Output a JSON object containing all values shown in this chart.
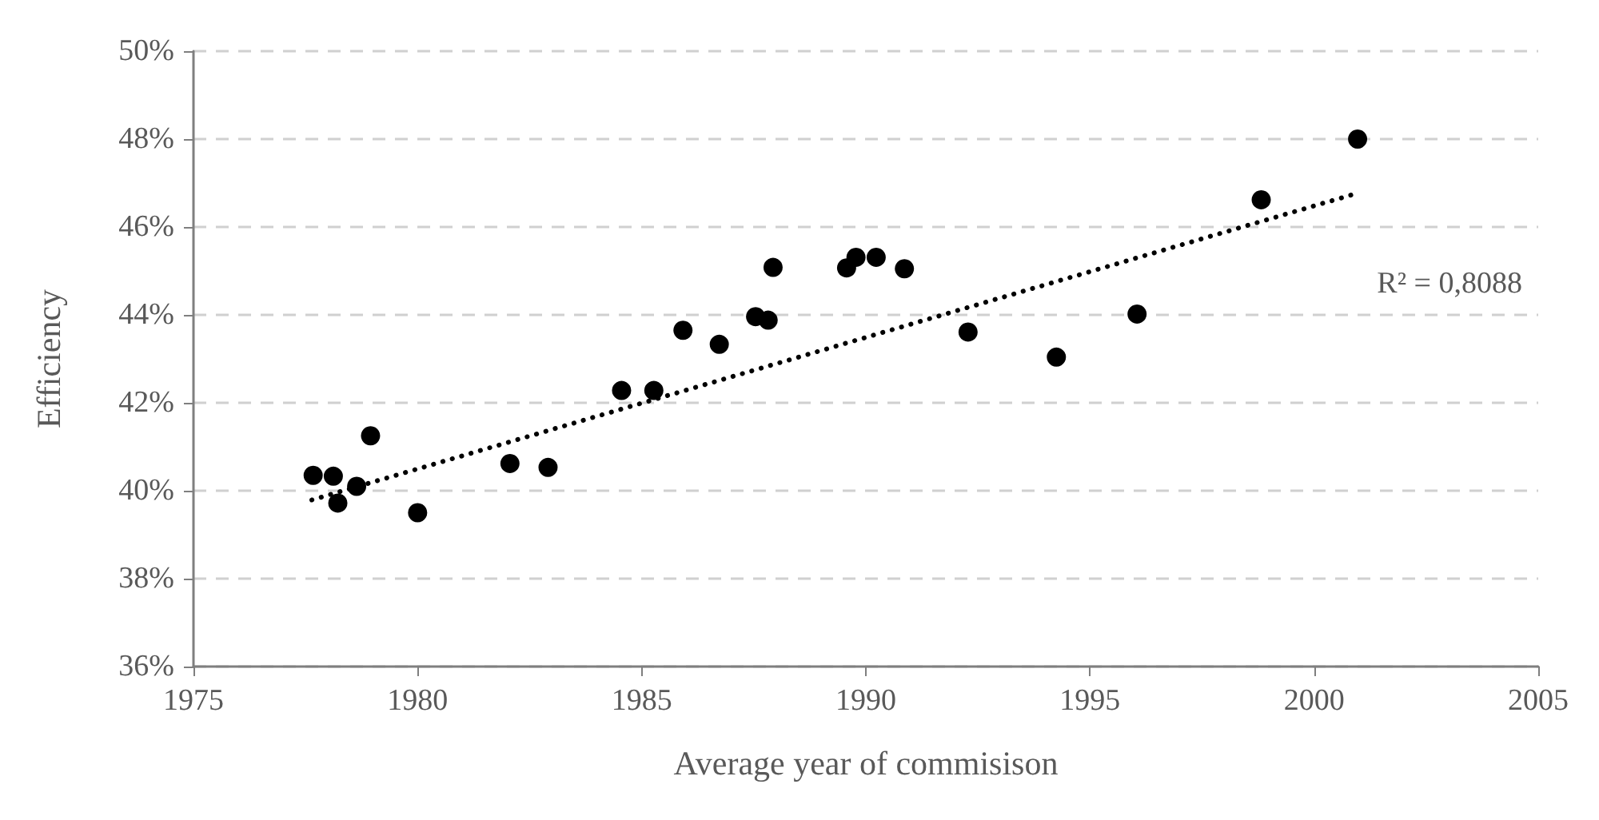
{
  "chart_data": {
    "type": "scatter",
    "xlabel": "Average year of commisison",
    "ylabel": "Efficiency",
    "xlim": [
      1975,
      2005
    ],
    "xticks": [
      1975,
      1980,
      1985,
      1990,
      1995,
      2000,
      2005
    ],
    "ylim": [
      36,
      50
    ],
    "yticks": [
      {
        "value": 36,
        "label": "36%"
      },
      {
        "value": 38,
        "label": "38%"
      },
      {
        "value": 40,
        "label": "40%"
      },
      {
        "value": 42,
        "label": "42%"
      },
      {
        "value": 44,
        "label": "44%"
      },
      {
        "value": 46,
        "label": "46%"
      },
      {
        "value": 48,
        "label": "48%"
      },
      {
        "value": 50,
        "label": "50%"
      }
    ],
    "grid": "y",
    "marker": "circle",
    "annotations": [
      "R² = 0,8088"
    ],
    "series": [
      {
        "color": "#000000",
        "x": [
          1977.67,
          1978.12,
          1978.22,
          1978.64,
          1978.95,
          1980.0,
          1982.06,
          1982.91,
          1984.55,
          1985.27,
          1985.92,
          1986.73,
          1987.54,
          1987.82,
          1987.93,
          1989.57,
          1989.78,
          1990.23,
          1990.86,
          1992.28,
          1994.25,
          1996.05,
          1998.82,
          2000.97
        ],
        "values": [
          40.35,
          40.33,
          39.72,
          40.1,
          41.25,
          39.5,
          40.62,
          40.53,
          42.28,
          42.28,
          43.65,
          43.33,
          43.96,
          43.88,
          45.08,
          45.07,
          45.31,
          45.31,
          45.05,
          43.61,
          43.04,
          44.02,
          46.62,
          48.0
        ]
      },
      {
        "type": "line",
        "color": "#000000",
        "line_style": "dotted",
        "marker": "none",
        "x": [
          1977.64,
          2000.97
        ],
        "values": [
          39.79,
          46.77
        ]
      }
    ]
  }
}
